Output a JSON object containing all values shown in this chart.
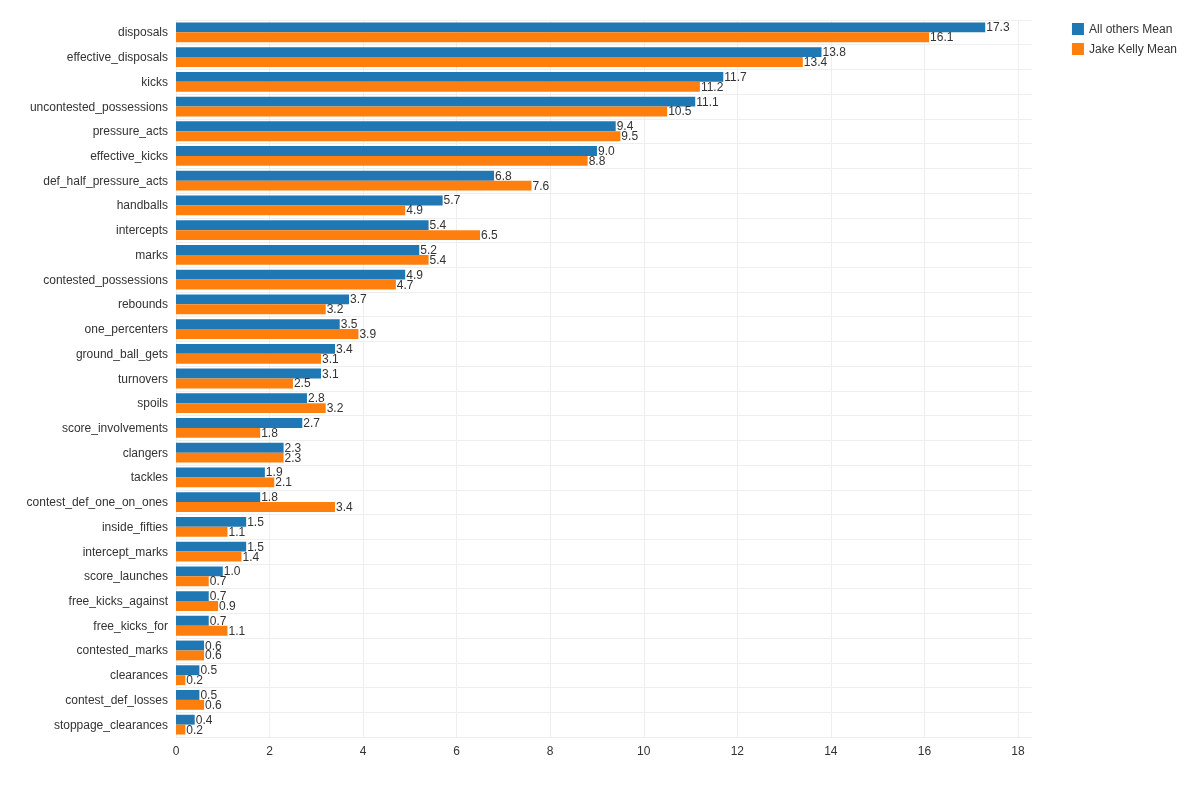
{
  "chart_data": {
    "type": "bar",
    "orientation": "horizontal",
    "categories": [
      "disposals",
      "effective_disposals",
      "kicks",
      "uncontested_possessions",
      "pressure_acts",
      "effective_kicks",
      "def_half_pressure_acts",
      "handballs",
      "intercepts",
      "marks",
      "contested_possessions",
      "rebounds",
      "one_percenters",
      "ground_ball_gets",
      "turnovers",
      "spoils",
      "score_involvements",
      "clangers",
      "tackles",
      "contest_def_one_on_ones",
      "inside_fifties",
      "intercept_marks",
      "score_launches",
      "free_kicks_against",
      "free_kicks_for",
      "contested_marks",
      "clearances",
      "contest_def_losses",
      "stoppage_clearances"
    ],
    "series": [
      {
        "name": "All others Mean",
        "color": "#1f77b4",
        "values": [
          17.3,
          13.8,
          11.7,
          11.1,
          9.4,
          9.0,
          6.8,
          5.7,
          5.4,
          5.2,
          4.9,
          3.7,
          3.5,
          3.4,
          3.1,
          2.8,
          2.7,
          2.3,
          1.9,
          1.8,
          1.5,
          1.5,
          1.0,
          0.7,
          0.7,
          0.6,
          0.5,
          0.5,
          0.4
        ],
        "value_labels": [
          "17.3",
          "13.8",
          "11.7",
          "11.1",
          "9.4",
          "9.0",
          "6.8",
          "5.7",
          "5.4",
          "5.2",
          "4.9",
          "3.7",
          "3.5",
          "3.4",
          "3.1",
          "2.8",
          "2.7",
          "2.3",
          "1.9",
          "1.8",
          "1.5",
          "1.5",
          "1.0",
          "0.7",
          "0.7",
          "0.6",
          "0.5",
          "0.5",
          "0.4"
        ]
      },
      {
        "name": "Jake Kelly Mean",
        "color": "#ff7f0e",
        "values": [
          16.1,
          13.4,
          11.2,
          10.5,
          9.5,
          8.8,
          7.6,
          4.9,
          6.5,
          5.4,
          4.7,
          3.2,
          3.9,
          3.1,
          2.5,
          3.2,
          1.8,
          2.3,
          2.1,
          3.4,
          1.1,
          1.4,
          0.7,
          0.9,
          1.1,
          0.6,
          0.2,
          0.6,
          0.2
        ],
        "value_labels": [
          "16.1",
          "13.4",
          "11.2",
          "10.5",
          "9.5",
          "8.8",
          "7.6",
          "4.9",
          "6.5",
          "5.4",
          "4.7",
          "3.2",
          "3.9",
          "3.1",
          "2.5",
          "3.2",
          "1.8",
          "2.3",
          "2.1",
          "3.4",
          "1.1",
          "1.4",
          "0.7",
          "0.9",
          "1.1",
          "0.6",
          "0.2",
          "0.6",
          "0.2"
        ]
      }
    ],
    "xlim": [
      0,
      18.3
    ],
    "xticks": [
      0,
      2,
      4,
      6,
      8,
      10,
      12,
      14,
      16,
      18
    ],
    "grid": true,
    "legend": "top right"
  }
}
